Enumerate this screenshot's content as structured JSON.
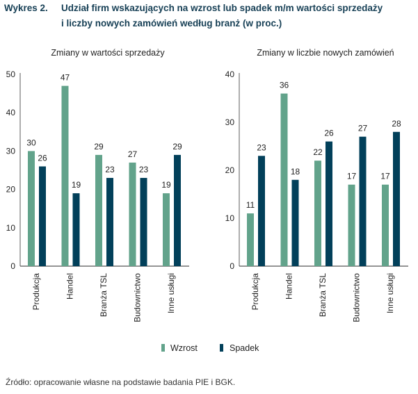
{
  "header": {
    "figure_number": "Wykres 2.",
    "title_line1": "Udział firm wskazujących na wzrost lub spadek m/m wartości sprzedaży",
    "title_line2": "i liczby nowych zamówień według branż (w proc.)"
  },
  "legend": {
    "items": [
      {
        "label": "Wzrost",
        "color": "#62a38b"
      },
      {
        "label": "Spadek",
        "color": "#02405a"
      }
    ]
  },
  "source": "Źródło: opracowanie własne na podstawie badania PIE i BGK.",
  "chart_data": [
    {
      "type": "bar",
      "title": "Zmiany w wartości sprzedaży",
      "xlabel": "",
      "ylabel": "",
      "ylim": [
        0,
        50
      ],
      "yticks": [
        0,
        10,
        20,
        30,
        40,
        50
      ],
      "categories": [
        "Produkcja",
        "Handel",
        "Branża TSL",
        "Budownictwo",
        "Inne usługi"
      ],
      "series": [
        {
          "name": "Wzrost",
          "color": "#62a38b",
          "values": [
            30,
            47,
            29,
            27,
            19
          ]
        },
        {
          "name": "Spadek",
          "color": "#02405a",
          "values": [
            26,
            19,
            23,
            23,
            29
          ]
        }
      ],
      "grid": false,
      "legend_position": "bottom-center"
    },
    {
      "type": "bar",
      "title": "Zmiany w liczbie nowych zamówień",
      "xlabel": "",
      "ylabel": "",
      "ylim": [
        0,
        40
      ],
      "yticks": [
        0,
        10,
        20,
        30,
        40
      ],
      "categories": [
        "Produkcja",
        "Handel",
        "Branża TSL",
        "Budownictwo",
        "Inne usługi"
      ],
      "series": [
        {
          "name": "Wzrost",
          "color": "#62a38b",
          "values": [
            11,
            36,
            22,
            17,
            17
          ]
        },
        {
          "name": "Spadek",
          "color": "#02405a",
          "values": [
            23,
            18,
            26,
            27,
            28
          ]
        }
      ],
      "grid": false,
      "legend_position": "bottom-center"
    }
  ]
}
